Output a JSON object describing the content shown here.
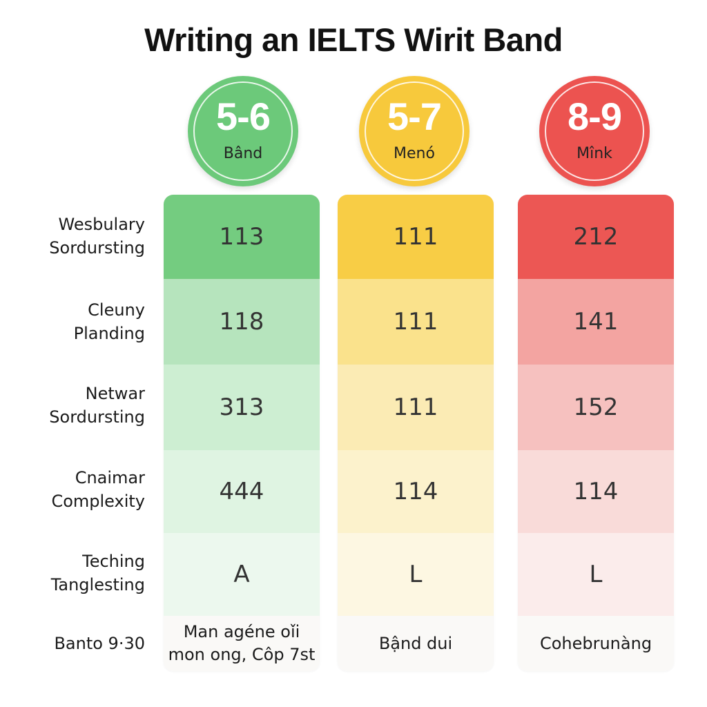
{
  "title": "Writing an IELTS Wirit Band",
  "colors": {
    "green": "#6cc97a",
    "yellow": "#f7c93c",
    "red": "#ec5350"
  },
  "bands": [
    {
      "range": "5-6",
      "label": "Bând"
    },
    {
      "range": "5-7",
      "label": "Menó"
    },
    {
      "range": "8-9",
      "label": "Mînk"
    }
  ],
  "rows": [
    {
      "label_lines": [
        "Wesbulary",
        "Sordursting"
      ]
    },
    {
      "label_lines": [
        "Cleuny",
        "Planding"
      ]
    },
    {
      "label_lines": [
        "Netwar",
        "Sordursting"
      ]
    },
    {
      "label_lines": [
        "Cnaimar",
        "Complexity"
      ]
    },
    {
      "label_lines": [
        "Teching",
        "Tanglesting"
      ]
    },
    {
      "label_lines": [
        "Banto 9·30"
      ]
    }
  ],
  "values": [
    [
      "113",
      "111",
      "212"
    ],
    [
      "118",
      "111",
      "141"
    ],
    [
      "313",
      "111",
      "152"
    ],
    [
      "444",
      "114",
      "114"
    ],
    [
      "A",
      "L",
      "L"
    ]
  ],
  "footer": [
    {
      "lines": [
        "Man agéne oǐi",
        "mon ong, Côp 7st"
      ]
    },
    {
      "lines": [
        "Bậnd dui"
      ]
    },
    {
      "lines": [
        "Cohebrunàng"
      ]
    }
  ]
}
